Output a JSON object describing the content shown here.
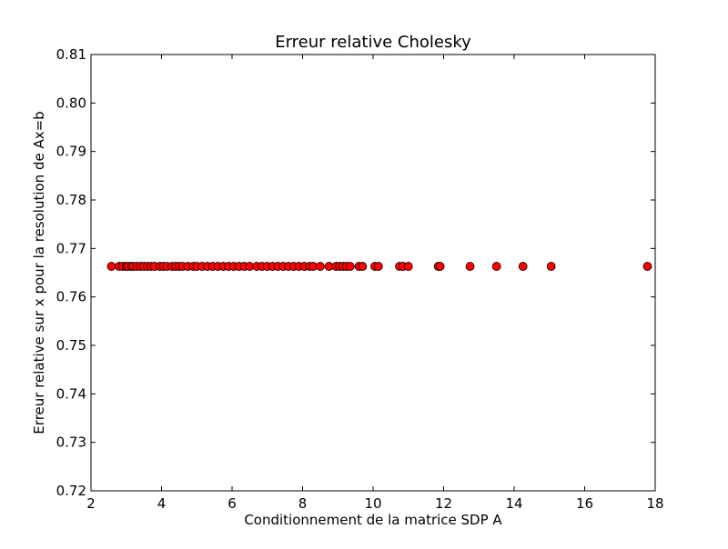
{
  "chart_data": {
    "type": "scatter",
    "title": "Erreur relative Cholesky",
    "xlabel": "Conditionnement de la matrice SDP A",
    "ylabel": "Erreur relative sur x pour la resolution de Ax=b",
    "xlim": [
      2,
      18
    ],
    "ylim": [
      0.72,
      0.81
    ],
    "xticks": [
      "2",
      "4",
      "6",
      "8",
      "10",
      "12",
      "14",
      "16",
      "18"
    ],
    "yticks": [
      "0.72",
      "0.73",
      "0.74",
      "0.75",
      "0.76",
      "0.77",
      "0.78",
      "0.79",
      "0.80",
      "0.81"
    ],
    "grid": false,
    "marker_color": "#ff0000",
    "marker_edge_color": "#000000",
    "series": [
      {
        "y_value": 0.7663,
        "x": [
          2.58,
          2.8,
          2.9,
          3.0,
          3.05,
          3.15,
          3.2,
          3.3,
          3.4,
          3.5,
          3.6,
          3.7,
          3.8,
          3.95,
          4.05,
          4.15,
          4.3,
          4.4,
          4.5,
          4.6,
          4.75,
          4.9,
          5.0,
          5.15,
          5.3,
          5.45,
          5.6,
          5.75,
          5.9,
          6.05,
          6.2,
          6.35,
          6.5,
          6.7,
          6.85,
          7.0,
          7.15,
          7.3,
          7.45,
          7.6,
          7.75,
          7.9,
          8.05,
          8.2,
          8.3,
          8.5,
          8.75,
          8.95,
          9.05,
          9.15,
          9.25,
          9.35,
          9.6,
          9.7,
          10.05,
          10.15,
          10.75,
          10.85,
          11.0,
          11.85,
          11.9,
          12.75,
          13.5,
          14.25,
          15.05,
          17.78
        ]
      }
    ]
  }
}
